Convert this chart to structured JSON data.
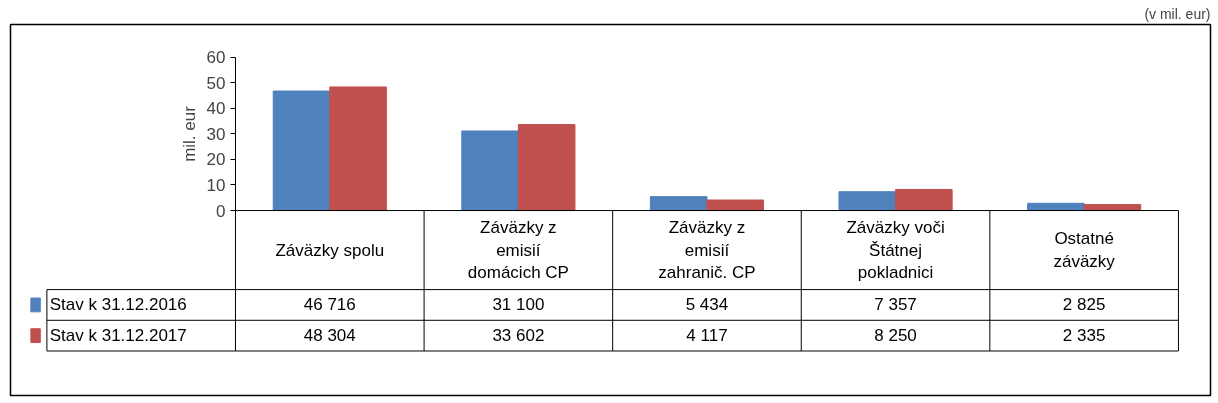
{
  "chart_data": {
    "type": "bar",
    "ylabel": "mil. eur",
    "annotations": [
      "(v mil. eur)",
      "46 716",
      "31 100",
      "5 434",
      "7 357",
      "2 825",
      "48 304",
      "33 602",
      "4 117",
      "8 250",
      "2 335"
    ],
    "categories": [
      "Záväzky spolu",
      "Záväzky z\nemisií\ndomácich CP",
      "Záväzky z\nemisií\nzahranič. CP",
      "Záväzky voči\nŠtátnej\npokladnici",
      "Ostatné\nzáväzky"
    ],
    "series": [
      {
        "name": "Stav k 31.12.2016",
        "color": "#4f81bd",
        "values": [
          46.716,
          31.1,
          5.434,
          7.357,
          2.825
        ]
      },
      {
        "name": "Stav k 31.12.2017",
        "color": "#c0504d",
        "values": [
          48.304,
          33.602,
          4.117,
          8.25,
          2.335
        ]
      }
    ],
    "ylim": [
      0,
      60
    ],
    "yticks": [
      0,
      10,
      20,
      30,
      40,
      50,
      60
    ],
    "grid": false,
    "legend": "bottom left"
  }
}
